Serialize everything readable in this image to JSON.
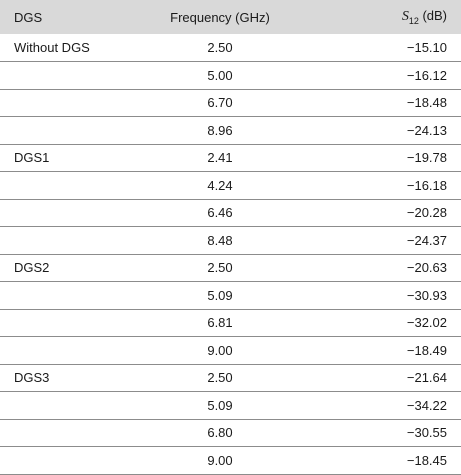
{
  "header": {
    "col_dgs": "DGS",
    "col_freq": "Frequency (GHz)",
    "col_s12_symbol": "S",
    "col_s12_sub": "12",
    "col_s12_unit": " (dB)"
  },
  "rows": [
    {
      "dgs": "Without DGS",
      "freq": "2.50",
      "s12": "−15.10"
    },
    {
      "dgs": "",
      "freq": "5.00",
      "s12": "−16.12"
    },
    {
      "dgs": "",
      "freq": "6.70",
      "s12": "−18.48"
    },
    {
      "dgs": "",
      "freq": "8.96",
      "s12": "−24.13"
    },
    {
      "dgs": "DGS1",
      "freq": "2.41",
      "s12": "−19.78"
    },
    {
      "dgs": "",
      "freq": "4.24",
      "s12": "−16.18"
    },
    {
      "dgs": "",
      "freq": "6.46",
      "s12": "−20.28"
    },
    {
      "dgs": "",
      "freq": "8.48",
      "s12": "−24.37"
    },
    {
      "dgs": "DGS2",
      "freq": "2.50",
      "s12": "−20.63"
    },
    {
      "dgs": "",
      "freq": "5.09",
      "s12": "−30.93"
    },
    {
      "dgs": "",
      "freq": "6.81",
      "s12": "−32.02"
    },
    {
      "dgs": "",
      "freq": "9.00",
      "s12": "−18.49"
    },
    {
      "dgs": "DGS3",
      "freq": "2.50",
      "s12": "−21.64"
    },
    {
      "dgs": "",
      "freq": "5.09",
      "s12": "−34.22"
    },
    {
      "dgs": "",
      "freq": "6.80",
      "s12": "−30.55"
    },
    {
      "dgs": "",
      "freq": "9.00",
      "s12": "−18.45"
    }
  ],
  "colors": {
    "header_bg": "#d9d9d9",
    "rule": "#8c8c8c",
    "text": "#1a1a1a"
  }
}
